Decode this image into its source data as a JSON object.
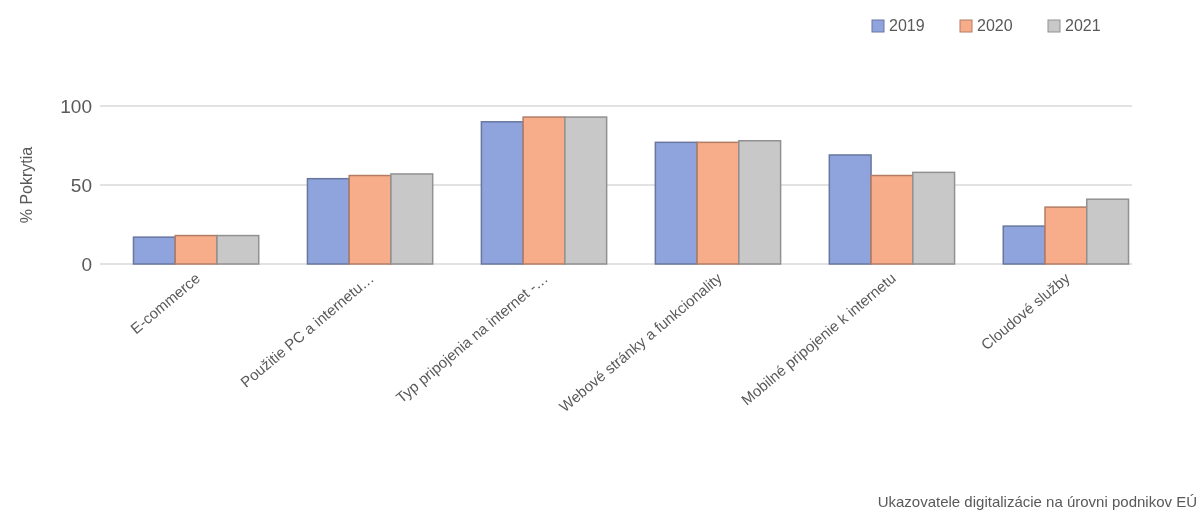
{
  "chart_data": {
    "type": "bar",
    "ylabel": "% Pokrytia",
    "categories": [
      "E-commerce",
      "Použitie PC a internetu…",
      "Typ pripojenia na internet -…",
      "Webové stránky a funkcionality",
      "Mobilné pripojenie k internetu",
      "Cloudové služby"
    ],
    "series": [
      {
        "name": "2019",
        "color": "#8fa4dc",
        "values": [
          17,
          54,
          90,
          77,
          69,
          24
        ]
      },
      {
        "name": "2020",
        "color": "#f7ad8a",
        "values": [
          18,
          56,
          93,
          77,
          56,
          36
        ]
      },
      {
        "name": "2021",
        "color": "#c8c8c8",
        "values": [
          18,
          57,
          93,
          78,
          58,
          41
        ]
      }
    ],
    "ylim": [
      0,
      100
    ],
    "yticks": [
      0,
      50,
      100
    ],
    "grid": "y",
    "legend": "top right",
    "annotations": [
      "Ukazovatele digitalizácie na úrovni podnikov EÚ"
    ]
  }
}
